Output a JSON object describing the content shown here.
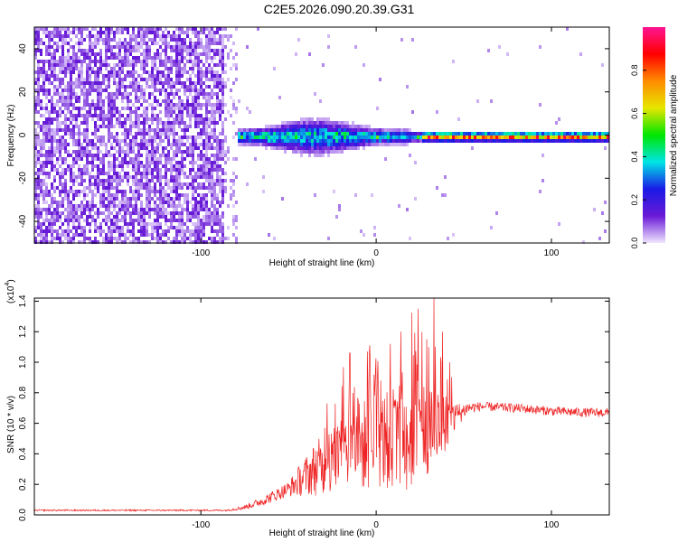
{
  "title": "C2E5.2026.090.20.39.G31",
  "chart_data": [
    {
      "type": "heatmap",
      "name": "spectrogram",
      "xlabel": "Height of straight line (km)",
      "ylabel": "Frequency (Hz)",
      "xlim": [
        -195,
        133
      ],
      "ylim": [
        -50,
        50
      ],
      "xticks": [
        -100,
        0,
        100
      ],
      "xtick_labels": [
        "-100",
        "0",
        "100"
      ],
      "yticks": [
        -40,
        -20,
        0,
        20,
        40
      ],
      "ytick_labels": [
        "-40",
        "-20",
        "0",
        "20",
        "40"
      ],
      "colorbar": {
        "label": "Normalized spectral amplitude",
        "range": [
          0,
          1
        ],
        "ticks": [
          0.0,
          0.2,
          0.4,
          0.6,
          0.8
        ],
        "tick_labels": [
          "0.0",
          "0.2",
          "0.4",
          "0.6",
          "0.8"
        ],
        "colormap": [
          "#f0e6ff",
          "#6a1ad6",
          "#1a1ae6",
          "#00e5e6",
          "#00e600",
          "#e6e600",
          "#ff8c00",
          "#ff0000",
          "#ff1493"
        ]
      }
    },
    {
      "type": "line",
      "name": "snr-trace",
      "xlabel": "Height of straight line (km)",
      "ylabel": "SNR (10 * v/v)",
      "exponent_label": "(x10",
      "exponent": "4",
      "exponent_close": ")",
      "xlim": [
        -195,
        133
      ],
      "ylim": [
        0,
        1.42
      ],
      "xticks": [
        -100,
        0,
        100
      ],
      "xtick_labels": [
        "-100",
        "0",
        "100"
      ],
      "yticks": [
        0.0,
        0.2,
        0.4,
        0.6,
        0.8,
        1.0,
        1.2,
        1.4
      ],
      "ytick_labels": [
        "0.0",
        "0.2",
        "0.4",
        "0.6",
        "0.8",
        "1.0",
        "1.2",
        "1.4"
      ],
      "line_color": "#ee2222",
      "envelope": {
        "x": [
          -195,
          -150,
          -100,
          -85,
          -75,
          -65,
          -50,
          -35,
          -20,
          -10,
          0,
          10,
          20,
          30,
          40,
          47,
          52,
          60,
          80,
          100,
          120,
          133
        ],
        "baseline": [
          0.03,
          0.03,
          0.03,
          0.03,
          0.05,
          0.09,
          0.17,
          0.3,
          0.4,
          0.45,
          0.48,
          0.5,
          0.52,
          0.56,
          0.6,
          0.66,
          0.7,
          0.71,
          0.7,
          0.68,
          0.67,
          0.67
        ],
        "spread": [
          0.01,
          0.01,
          0.01,
          0.01,
          0.03,
          0.06,
          0.1,
          0.35,
          0.5,
          0.6,
          0.62,
          0.7,
          0.75,
          0.65,
          0.35,
          0.15,
          0.08,
          0.06,
          0.06,
          0.06,
          0.06,
          0.06
        ],
        "peaks": [
          {
            "x": -28,
            "y": 0.73
          },
          {
            "x": -15,
            "y": 1.06
          },
          {
            "x": 8,
            "y": 1.12
          },
          {
            "x": 14,
            "y": 1.2
          },
          {
            "x": 24,
            "y": 1.35
          },
          {
            "x": 33,
            "y": 1.42
          },
          {
            "x": 38,
            "y": 1.2
          },
          {
            "x": 42,
            "y": 1.0
          }
        ]
      }
    }
  ]
}
